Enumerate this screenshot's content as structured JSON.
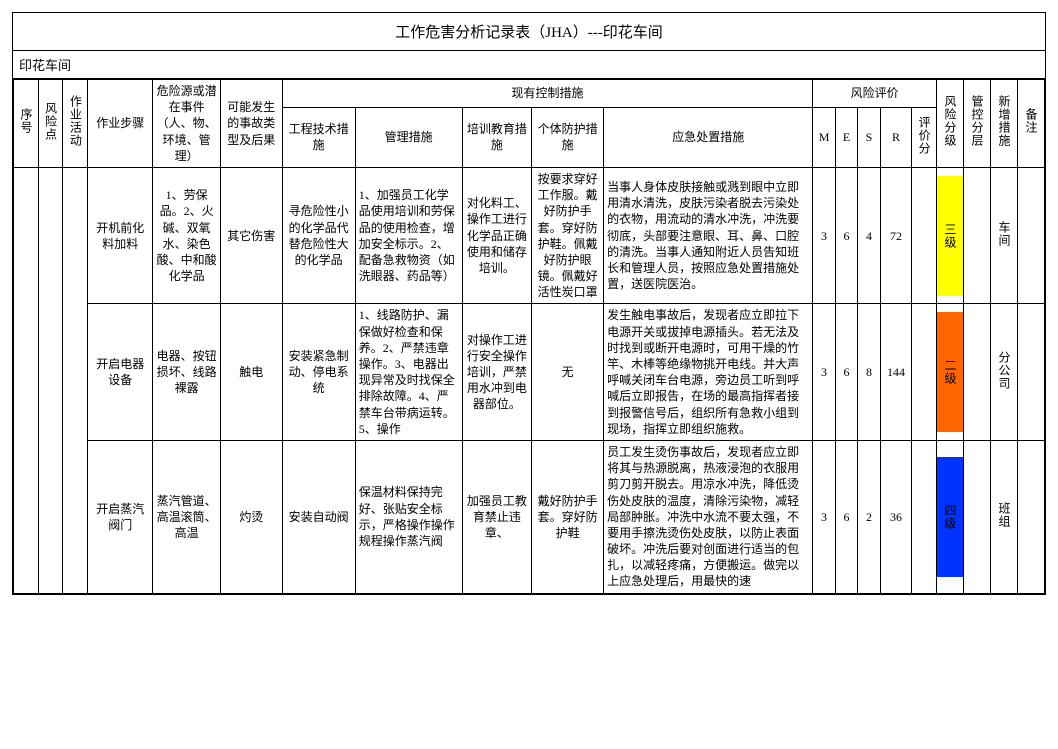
{
  "title": "工作危害分析记录表（JHA）---印花车间",
  "subtitle": "印花车间",
  "columns": {
    "c0": "序号",
    "c1": "风险点",
    "c2": "作业活动",
    "c3": "作业步骤",
    "c4": "危险源或潜在事件（人、物、环境、管理）",
    "c5": "可能发生的事故类型及后果",
    "c6_group": "现有控制措施",
    "c6a": "工程技术措施",
    "c6b": "管理措施",
    "c6c": "培训教育措施",
    "c6d": "个体防护措施",
    "c6e": "应急处置措施",
    "c7_group": "风险评价",
    "c7a": "M",
    "c7b": "E",
    "c7c": "S",
    "c7d": "R",
    "c7e": "评价分",
    "c8": "风险分级",
    "c9": "管控分层",
    "c10": "新增措施",
    "c11": "备注"
  },
  "rows": [
    {
      "step": "开机前化料加料",
      "hazard": "1、劳保品。2、火碱、双氧水、染色酸、中和酸化学品",
      "accident": "其它伤害",
      "eng": "寻危险性小的化学品代替危险性大的化学品",
      "mgmt": "1、加强员工化学品使用培训和劳保品的使用检查，增加安全标示。2、配备急救物资（如洗眼器、药品等）",
      "train": "对化料工、操作工进行化学品正确使用和储存培训。",
      "ppe": "按要求穿好工作服。戴好防护手套。穿好防护鞋。佩戴好防护眼镜。佩戴好活性炭口罩",
      "emergency": "当事人身体皮肤接触或溅到眼中立即用清水清洗，皮肤污染者脱去污染处的衣物，用流动的清水冲洗，冲洗要彻底，头部要注意眼、耳、鼻、口腔的清洗。当事人通知附近人员告知班长和管理人员，按照应急处置措施处置，送医院医治。",
      "M": "3",
      "E": "6",
      "S": "4",
      "R": "72",
      "level": "三级",
      "level_color": "#ffff00",
      "layer": "车间"
    },
    {
      "step": "开启电器设备",
      "hazard": "电器、按钮损坏、线路裸露",
      "accident": "触电",
      "eng": "安装紧急制动、停电系统",
      "mgmt": "1、线路防护、漏保做好检查和保养。2、严禁违章操作。3、电器出现异常及时找保全排除故障。4、严禁车台带病运转。5、操作",
      "train": "对操作工进行安全操作培训，严禁用水冲到电器部位。",
      "ppe": "无",
      "emergency": "发生触电事故后，发现者应立即拉下电源开关或拔掉电源插头。若无法及时找到或断开电源时，可用干燥的竹竿、木棒等绝缘物挑开电线。并大声呼喊关闭车台电源，旁边员工听到呼喊后立即报告，在场的最高指挥者接到报警信号后，组织所有急救小组到现场，指挥立即组织施救。",
      "M": "3",
      "E": "6",
      "S": "8",
      "R": "144",
      "level": "二级",
      "level_color": "#ff6600",
      "layer": "分公司"
    },
    {
      "step": "开启蒸汽阀门",
      "hazard": "蒸汽管道、高温滚筒、高温",
      "accident": "灼烫",
      "eng": "安装自动阀",
      "mgmt": "保温材料保持完好、张贴安全标示，严格操作操作规程操作蒸汽阀",
      "train": "加强员工教育禁止违章、",
      "ppe": "戴好防护手套。穿好防护鞋",
      "emergency": "员工发生烫伤事故后，发现者应立即将其与热源脱离，热液浸泡的衣服用剪刀剪开脱去。用凉水冲洗，降低烫伤处皮肤的温度，清除污染物，减轻局部肿胀。冲洗中水流不要太强，不要用手擦洗烫伤处皮肤，以防止表面破坏。冲洗后要对创面进行适当的包扎，以减轻疼痛，方便搬运。做完以上应急处理后，用最快的速",
      "M": "3",
      "E": "6",
      "S": "2",
      "R": "36",
      "level": "四级",
      "level_color": "#0033ff",
      "layer": "班组"
    }
  ]
}
